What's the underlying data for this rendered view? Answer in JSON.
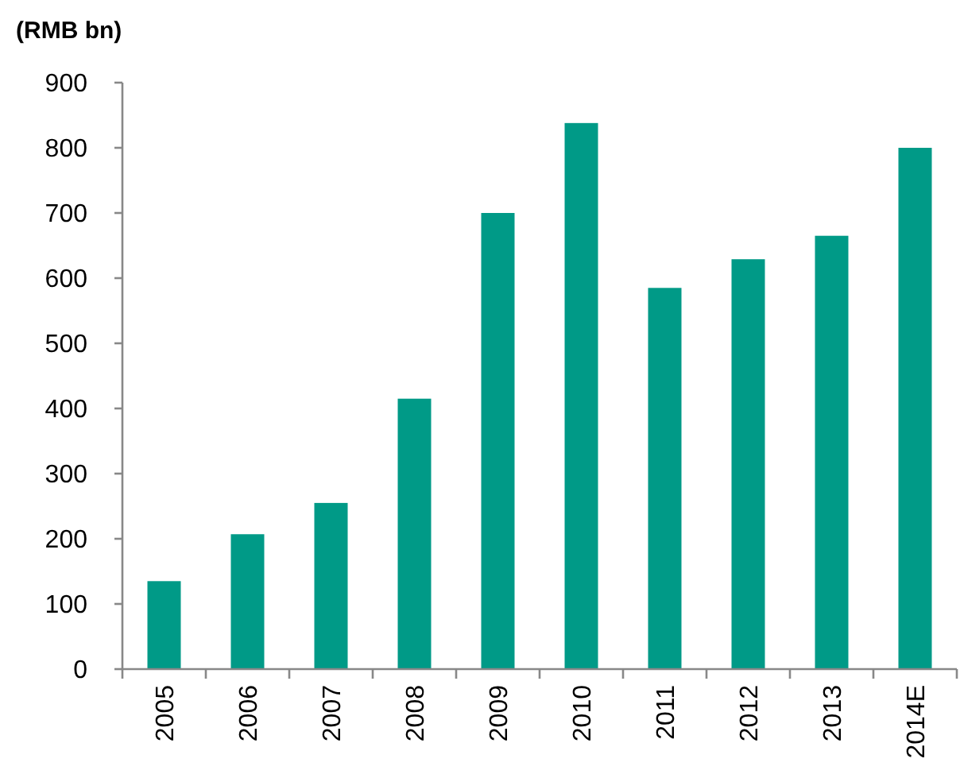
{
  "chart_data": {
    "type": "bar",
    "ylabel": "(RMB bn)",
    "categories": [
      "2005",
      "2006",
      "2007",
      "2008",
      "2009",
      "2010",
      "2011",
      "2012",
      "2013",
      "2014E"
    ],
    "values": [
      135,
      207,
      255,
      415,
      700,
      838,
      585,
      629,
      665,
      800
    ],
    "color": "#009a87",
    "ylim": [
      0,
      900
    ],
    "yticks": [
      0,
      100,
      200,
      300,
      400,
      500,
      600,
      700,
      800,
      900
    ],
    "grid": false
  }
}
